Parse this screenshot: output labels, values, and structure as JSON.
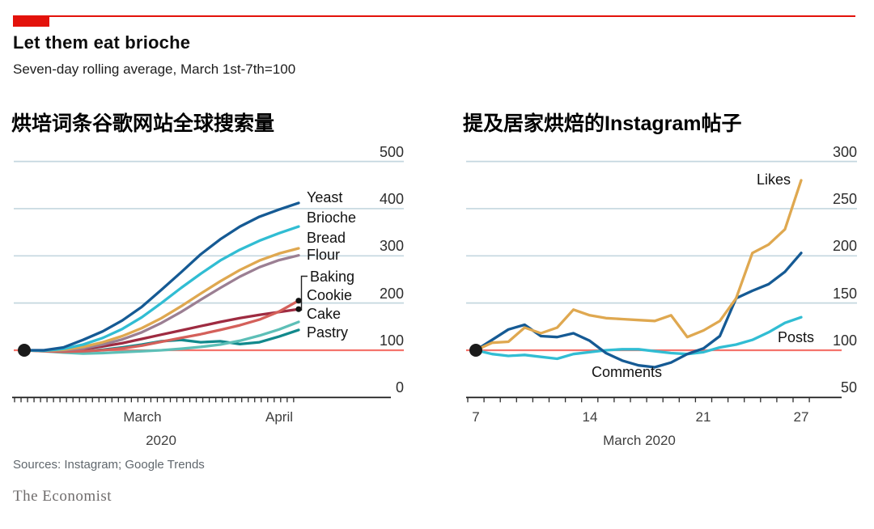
{
  "header": {
    "title": "Let them eat brioche",
    "subtitle": "Seven-day rolling average, March 1st-7th=100",
    "accent_color": "#e3120b"
  },
  "chart_data": [
    {
      "type": "line",
      "title": "烘培词条谷歌网站全球搜索量",
      "x_axis": {
        "month_labels": [
          "March",
          "April"
        ],
        "year_label": "2020"
      },
      "y_ticks": [
        500,
        400,
        300,
        200,
        100,
        0
      ],
      "ylim": [
        0,
        500
      ],
      "baseline": 100,
      "grid": "horizontal",
      "series": [
        {
          "name": "Yeast",
          "color": "#155a94",
          "values": [
            100,
            100,
            106,
            122,
            140,
            163,
            192,
            228,
            265,
            303,
            335,
            362,
            383,
            398,
            412
          ]
        },
        {
          "name": "Brioche",
          "color": "#31bdd3",
          "values": [
            100,
            99,
            103,
            112,
            126,
            145,
            170,
            200,
            232,
            262,
            290,
            313,
            332,
            348,
            362
          ]
        },
        {
          "name": "Bread",
          "color": "#dfa850",
          "values": [
            100,
            99,
            101,
            107,
            117,
            130,
            147,
            168,
            193,
            220,
            246,
            270,
            290,
            305,
            316
          ]
        },
        {
          "name": "Flour",
          "color": "#9b7f93",
          "values": [
            100,
            99,
            100,
            104,
            112,
            123,
            138,
            158,
            181,
            207,
            232,
            256,
            276,
            291,
            301
          ]
        },
        {
          "name": "Baking",
          "color": "#d4605a",
          "end_dot": true,
          "values": [
            100,
            98,
            97,
            98,
            100,
            104,
            110,
            118,
            126,
            134,
            143,
            153,
            165,
            182,
            205
          ]
        },
        {
          "name": "Cookie",
          "color": "#9e2b41",
          "end_dot": true,
          "values": [
            100,
            99,
            100,
            103,
            108,
            115,
            124,
            133,
            142,
            151,
            160,
            168,
            175,
            181,
            187
          ]
        },
        {
          "name": "Cake",
          "color": "#5dbfb7",
          "values": [
            100,
            98,
            95,
            93,
            94,
            96,
            98,
            100,
            103,
            107,
            112,
            120,
            131,
            144,
            160
          ]
        },
        {
          "name": "Pastry",
          "color": "#12898c",
          "values": [
            100,
            99,
            97,
            98,
            101,
            106,
            112,
            119,
            122,
            117,
            119,
            113,
            117,
            129,
            143
          ]
        }
      ]
    },
    {
      "type": "line",
      "title": "提及居家烘焙的Instagram帖子",
      "x_axis": {
        "tick_labels": [
          "7",
          "14",
          "21",
          "27"
        ],
        "label": "March 2020",
        "days": [
          7,
          27
        ]
      },
      "y_ticks": [
        300,
        250,
        200,
        150,
        100,
        50
      ],
      "ylim": [
        50,
        300
      ],
      "baseline": 100,
      "grid": "horizontal",
      "series": [
        {
          "name": "Likes",
          "color": "#dfa850",
          "values": [
            100,
            108,
            109,
            124,
            118,
            124,
            143,
            137,
            134,
            133,
            132,
            131,
            137,
            114,
            121,
            131,
            155,
            203,
            212,
            228,
            280
          ]
        },
        {
          "name": "Comments",
          "color": "#155a94",
          "values": [
            100,
            111,
            122,
            127,
            115,
            114,
            118,
            110,
            97,
            89,
            84,
            82,
            87,
            96,
            102,
            115,
            155,
            163,
            170,
            183,
            203
          ]
        },
        {
          "name": "Posts",
          "color": "#31bdd3",
          "values": [
            100,
            96,
            94,
            95,
            93,
            91,
            96,
            98,
            100,
            101,
            101,
            99,
            97,
            96,
            98,
            103,
            106,
            111,
            119,
            129,
            135
          ]
        }
      ]
    }
  ],
  "colors": {
    "baseline_red": "#f4736c",
    "gridline": "#c4d7df",
    "axis": "#1a1a1a"
  },
  "footer": {
    "sources": "Sources: Instagram; Google Trends",
    "brand": "The Economist"
  }
}
